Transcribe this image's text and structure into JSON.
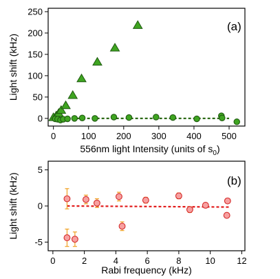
{
  "chart_data": [
    {
      "type": "scatter",
      "panel_label": "(a)",
      "xlabel": "556nm light Intensity (units of s",
      "xlabel_sub": "0",
      "xlabel_end": ")",
      "ylabel": "Light shift (kHz)",
      "xlim": [
        -15,
        545
      ],
      "ylim": [
        -18,
        258
      ],
      "xticks": [
        0,
        100,
        200,
        300,
        400,
        500
      ],
      "yticks": [
        0,
        50,
        100,
        150,
        200,
        250
      ],
      "grid": false,
      "legend": "none",
      "series": [
        {
          "marker": "triangle",
          "color": "#3fa521",
          "points": [
            [
              0,
              2
            ],
            [
              8,
              6
            ],
            [
              15,
              12
            ],
            [
              22,
              19
            ],
            [
              35,
              30
            ],
            [
              55,
              54
            ],
            [
              80,
              93
            ],
            [
              125,
              132
            ],
            [
              175,
              165
            ],
            [
              240,
              218
            ]
          ]
        },
        {
          "marker": "circle",
          "color": "#3fa521",
          "points": [
            [
              5,
              -1
            ],
            [
              12,
              -2
            ],
            [
              20,
              -4
            ],
            [
              28,
              -2
            ],
            [
              40,
              -1
            ],
            [
              60,
              0
            ],
            [
              82,
              1
            ],
            [
              118,
              0
            ],
            [
              172,
              3
            ],
            [
              215,
              2
            ],
            [
              292,
              3
            ],
            [
              340,
              2
            ],
            [
              408,
              -1
            ],
            [
              478,
              6
            ],
            [
              480,
              1
            ],
            [
              522,
              -8
            ]
          ]
        },
        {
          "type": "line",
          "style": "dashed",
          "color": "#2d6a16",
          "points": [
            [
              0,
              0
            ],
            [
              500,
              0
            ]
          ]
        }
      ]
    },
    {
      "type": "scatter",
      "panel_label": "(b)",
      "xlabel": "Rabi frequency (kHz)",
      "ylabel": "Light shift (kHz)",
      "xlim": [
        -0.3,
        12.2
      ],
      "ylim": [
        -6.2,
        6.2
      ],
      "xticks": [
        0,
        2,
        4,
        6,
        8,
        10,
        12
      ],
      "yticks": [
        -5,
        0,
        5
      ],
      "grid": false,
      "legend": "none",
      "series": [
        {
          "marker": "circle",
          "color": "#f7a0a0",
          "edge": "#d42a2a",
          "errcolor": "#f0a020",
          "points": [
            [
              0.9,
              1.0,
              1.4
            ],
            [
              0.9,
              -4.4,
              1.2
            ],
            [
              1.4,
              -4.6,
              1.0
            ],
            [
              2.1,
              0.9,
              0.6
            ],
            [
              2.8,
              0.4,
              0.6
            ],
            [
              4.2,
              1.3,
              0.6
            ],
            [
              4.4,
              -2.8,
              0.6
            ],
            [
              5.9,
              0.8,
              0.4
            ],
            [
              8.0,
              1.4,
              0.4
            ],
            [
              8.7,
              -0.5,
              0.4
            ],
            [
              9.7,
              0.1,
              0.3
            ],
            [
              11.1,
              0.7,
              0.3
            ],
            [
              11.05,
              -1.3,
              0.3
            ]
          ]
        },
        {
          "type": "line",
          "style": "dashed",
          "color": "#e21b1b",
          "points": [
            [
              0.9,
              0.0
            ],
            [
              11.2,
              -0.15
            ]
          ]
        }
      ]
    }
  ]
}
